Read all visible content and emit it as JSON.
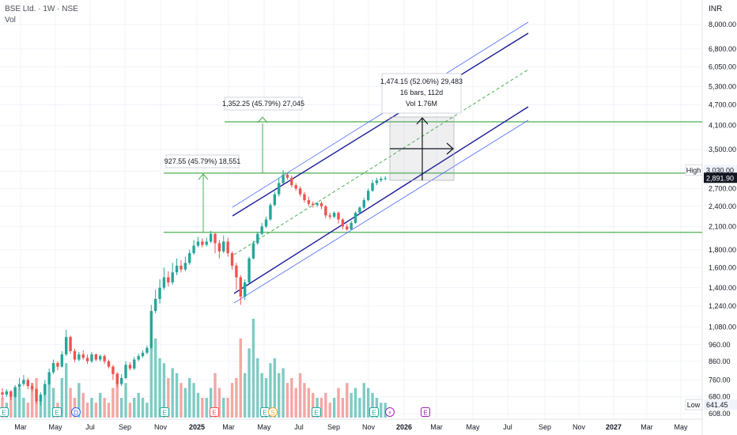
{
  "header": {
    "symbol": "BSE Ltd. · 1W · NSE",
    "volume_label": "Vol"
  },
  "axis": {
    "currency": "INR",
    "high_label": "High",
    "low_label": "Low",
    "high_value": "3,030.00",
    "last_value": "2,891.90",
    "low_value": "641.45"
  },
  "chart_data": {
    "type": "candlestick",
    "y_scale": "log",
    "ylim": [
      590,
      8600
    ],
    "y_ticks": [
      "8,000.00",
      "6,800.00",
      "6,050.00",
      "5,300.00",
      "4,700.00",
      "4,100.00",
      "3,500.00",
      "3,030.00",
      "2,700.00",
      "2,400.00",
      "2,100.00",
      "1,800.00",
      "1,600.00",
      "1,400.00",
      "1,240.00",
      "1,080.00",
      "960.00",
      "860.00",
      "760.00",
      "680.00",
      "608.00"
    ],
    "x_ticks": [
      {
        "label": "Mar",
        "bold": false
      },
      {
        "label": "May",
        "bold": false
      },
      {
        "label": "Jul",
        "bold": false
      },
      {
        "label": "Sep",
        "bold": false
      },
      {
        "label": "Nov",
        "bold": false
      },
      {
        "label": "2025",
        "bold": true
      },
      {
        "label": "Mar",
        "bold": false
      },
      {
        "label": "May",
        "bold": false
      },
      {
        "label": "Jul",
        "bold": false
      },
      {
        "label": "Sep",
        "bold": false
      },
      {
        "label": "Nov",
        "bold": false
      },
      {
        "label": "2026",
        "bold": true
      },
      {
        "label": "Mar",
        "bold": false
      },
      {
        "label": "May",
        "bold": false
      },
      {
        "label": "Jul",
        "bold": false
      },
      {
        "label": "Sep",
        "bold": false
      },
      {
        "label": "Nov",
        "bold": false
      },
      {
        "label": "2027",
        "bold": true
      },
      {
        "label": "Mar",
        "bold": false
      },
      {
        "label": "May",
        "bold": false
      }
    ],
    "candles": [
      [
        700,
        690,
        720,
        670
      ],
      [
        690,
        705,
        715,
        680
      ],
      [
        705,
        680,
        710,
        665
      ],
      [
        680,
        725,
        735,
        675
      ],
      [
        725,
        740,
        770,
        715
      ],
      [
        740,
        760,
        785,
        730
      ],
      [
        760,
        730,
        770,
        715
      ],
      [
        730,
        715,
        745,
        705
      ],
      [
        715,
        660,
        720,
        648
      ],
      [
        660,
        690,
        700,
        642
      ],
      [
        690,
        740,
        760,
        685
      ],
      [
        740,
        800,
        820,
        735
      ],
      [
        800,
        850,
        870,
        790
      ],
      [
        850,
        830,
        860,
        810
      ],
      [
        830,
        900,
        920,
        825
      ],
      [
        900,
        1010,
        1060,
        890
      ],
      [
        1010,
        920,
        1020,
        905
      ],
      [
        920,
        870,
        935,
        855
      ],
      [
        870,
        900,
        915,
        860
      ],
      [
        900,
        880,
        925,
        870
      ],
      [
        880,
        860,
        900,
        845
      ],
      [
        860,
        900,
        915,
        850
      ],
      [
        900,
        870,
        905,
        860
      ],
      [
        870,
        890,
        900,
        858
      ],
      [
        890,
        860,
        900,
        845
      ],
      [
        860,
        830,
        870,
        820
      ],
      [
        830,
        790,
        840,
        760
      ],
      [
        790,
        740,
        800,
        725
      ],
      [
        740,
        770,
        790,
        730
      ],
      [
        770,
        840,
        860,
        765
      ],
      [
        840,
        820,
        855,
        810
      ],
      [
        820,
        870,
        885,
        812
      ],
      [
        870,
        890,
        905,
        860
      ],
      [
        890,
        910,
        925,
        880
      ],
      [
        910,
        940,
        955,
        900
      ],
      [
        940,
        1200,
        1250,
        935
      ],
      [
        1200,
        1300,
        1380,
        1180
      ],
      [
        1300,
        1400,
        1480,
        1260
      ],
      [
        1400,
        1500,
        1600,
        1380
      ],
      [
        1500,
        1450,
        1560,
        1410
      ],
      [
        1450,
        1550,
        1650,
        1430
      ],
      [
        1550,
        1620,
        1700,
        1520
      ],
      [
        1620,
        1580,
        1680,
        1550
      ],
      [
        1580,
        1650,
        1720,
        1560
      ],
      [
        1650,
        1760,
        1800,
        1630
      ],
      [
        1760,
        1850,
        1920,
        1740
      ],
      [
        1850,
        1900,
        1960,
        1830
      ],
      [
        1900,
        1860,
        1940,
        1830
      ],
      [
        1860,
        1900,
        1950,
        1840
      ],
      [
        1900,
        2000,
        2040,
        1880
      ],
      [
        2000,
        1880,
        2010,
        1760
      ],
      [
        1880,
        1780,
        1920,
        1700
      ],
      [
        1780,
        1900,
        1980,
        1760
      ],
      [
        1900,
        1760,
        1950,
        1720
      ],
      [
        1760,
        1620,
        1780,
        1580
      ],
      [
        1620,
        1500,
        1650,
        1380
      ],
      [
        1500,
        1320,
        1520,
        1250
      ],
      [
        1320,
        1450,
        1480,
        1290
      ],
      [
        1450,
        1700,
        1720,
        1440
      ],
      [
        1700,
        1880,
        1910,
        1690
      ],
      [
        1880,
        2000,
        2030,
        1860
      ],
      [
        2000,
        2100,
        2150,
        1980
      ],
      [
        2100,
        2200,
        2240,
        2080
      ],
      [
        2200,
        2420,
        2450,
        2180
      ],
      [
        2420,
        2600,
        2650,
        2400
      ],
      [
        2600,
        2800,
        2900,
        2560
      ],
      [
        2800,
        2960,
        3050,
        2780
      ],
      [
        2960,
        2900,
        3000,
        2860
      ],
      [
        2900,
        2760,
        2940,
        2720
      ],
      [
        2760,
        2700,
        2800,
        2660
      ],
      [
        2700,
        2600,
        2740,
        2560
      ],
      [
        2600,
        2500,
        2640,
        2460
      ],
      [
        2500,
        2440,
        2560,
        2400
      ],
      [
        2440,
        2420,
        2480,
        2380
      ],
      [
        2420,
        2450,
        2470,
        2390
      ],
      [
        2450,
        2400,
        2480,
        2360
      ],
      [
        2400,
        2260,
        2420,
        2220
      ],
      [
        2260,
        2240,
        2300,
        2200
      ],
      [
        2240,
        2300,
        2320,
        2220
      ],
      [
        2300,
        2200,
        2320,
        2140
      ],
      [
        2200,
        2100,
        2220,
        2060
      ],
      [
        2100,
        2060,
        2140,
        2040
      ],
      [
        2060,
        2150,
        2180,
        2050
      ],
      [
        2150,
        2300,
        2320,
        2140
      ],
      [
        2300,
        2380,
        2400,
        2280
      ],
      [
        2380,
        2500,
        2540,
        2360
      ],
      [
        2500,
        2660,
        2700,
        2480
      ],
      [
        2660,
        2800,
        2860,
        2640
      ],
      [
        2800,
        2850,
        2900,
        2760
      ],
      [
        2850,
        2880,
        2920,
        2820
      ],
      [
        2880,
        2892,
        2930,
        2850
      ]
    ],
    "volume_rel": [
      0.2,
      0.15,
      0.25,
      0.3,
      0.3,
      0.2,
      0.15,
      0.35,
      0.4,
      0.2,
      0.25,
      0.35,
      0.3,
      0.15,
      0.4,
      0.55,
      0.3,
      0.2,
      0.35,
      0.25,
      0.15,
      0.2,
      0.15,
      0.25,
      0.2,
      0.15,
      0.3,
      0.45,
      0.2,
      0.35,
      0.15,
      0.2,
      0.25,
      0.2,
      0.15,
      0.75,
      0.8,
      0.6,
      0.55,
      0.4,
      0.5,
      0.45,
      0.35,
      0.3,
      0.4,
      0.35,
      0.25,
      0.2,
      0.2,
      0.3,
      0.45,
      0.3,
      0.2,
      0.2,
      0.35,
      0.4,
      0.8,
      0.45,
      0.7,
      1.0,
      0.6,
      0.45,
      0.4,
      0.55,
      0.6,
      0.45,
      0.5,
      0.35,
      0.4,
      0.3,
      0.45,
      0.35,
      0.3,
      0.25,
      0.2,
      0.2,
      0.25,
      0.15,
      0.2,
      0.3,
      0.2,
      0.35,
      0.25,
      0.3,
      0.2,
      0.35,
      0.3,
      0.25,
      0.2,
      0.15,
      0.15
    ],
    "annotations": [
      {
        "label": "927.55 (45.79%) 18,551"
      },
      {
        "label": "1,352.25 (45.79%) 27,045"
      },
      {
        "label": "1,474.15 (52.06%) 29,483"
      },
      {
        "label": "16 bars, 112d"
      },
      {
        "label": "Vol 1.76M"
      }
    ],
    "horizontal_levels": [
      2020,
      2990,
      4200
    ],
    "colors": {
      "up": "#26a69a",
      "down": "#ef5350",
      "channel_mid": "#1a1a99",
      "channel_outer": "#4d6bfe",
      "level": "#4caf50",
      "vol_up": "#80cbc4",
      "vol_down": "#f4a7a5"
    }
  }
}
